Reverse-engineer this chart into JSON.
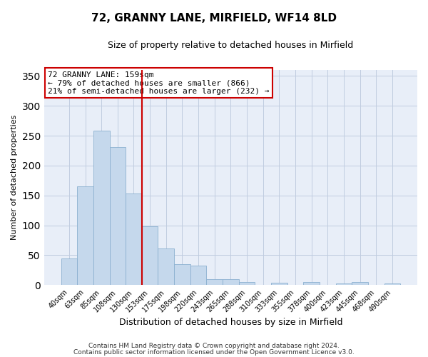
{
  "title": "72, GRANNY LANE, MIRFIELD, WF14 8LD",
  "subtitle": "Size of property relative to detached houses in Mirfield",
  "xlabel": "Distribution of detached houses by size in Mirfield",
  "ylabel": "Number of detached properties",
  "bar_labels": [
    "40sqm",
    "63sqm",
    "85sqm",
    "108sqm",
    "130sqm",
    "153sqm",
    "175sqm",
    "198sqm",
    "220sqm",
    "243sqm",
    "265sqm",
    "288sqm",
    "310sqm",
    "333sqm",
    "355sqm",
    "378sqm",
    "400sqm",
    "423sqm",
    "445sqm",
    "468sqm",
    "490sqm"
  ],
  "bar_values": [
    45,
    165,
    258,
    231,
    153,
    98,
    61,
    35,
    32,
    10,
    10,
    5,
    0,
    4,
    0,
    5,
    0,
    2,
    5,
    0,
    3
  ],
  "bar_color": "#c5d8ec",
  "bar_edge_color": "#8bb0d0",
  "vline_x": 4.5,
  "vline_color": "#cc0000",
  "ylim": [
    0,
    360
  ],
  "yticks": [
    0,
    50,
    100,
    150,
    200,
    250,
    300,
    350
  ],
  "annotation_title": "72 GRANNY LANE: 159sqm",
  "annotation_line1": "← 79% of detached houses are smaller (866)",
  "annotation_line2": "21% of semi-detached houses are larger (232) →",
  "annotation_box_facecolor": "#ffffff",
  "annotation_box_edgecolor": "#cc0000",
  "footer1": "Contains HM Land Registry data © Crown copyright and database right 2024.",
  "footer2": "Contains public sector information licensed under the Open Government Licence v3.0.",
  "fig_facecolor": "#ffffff",
  "plot_facecolor": "#e8eef8",
  "grid_color": "#c0cce0",
  "title_fontsize": 11,
  "subtitle_fontsize": 9,
  "ylabel_fontsize": 8,
  "xlabel_fontsize": 9,
  "tick_fontsize": 7,
  "footer_fontsize": 6.5,
  "annot_fontsize": 8
}
